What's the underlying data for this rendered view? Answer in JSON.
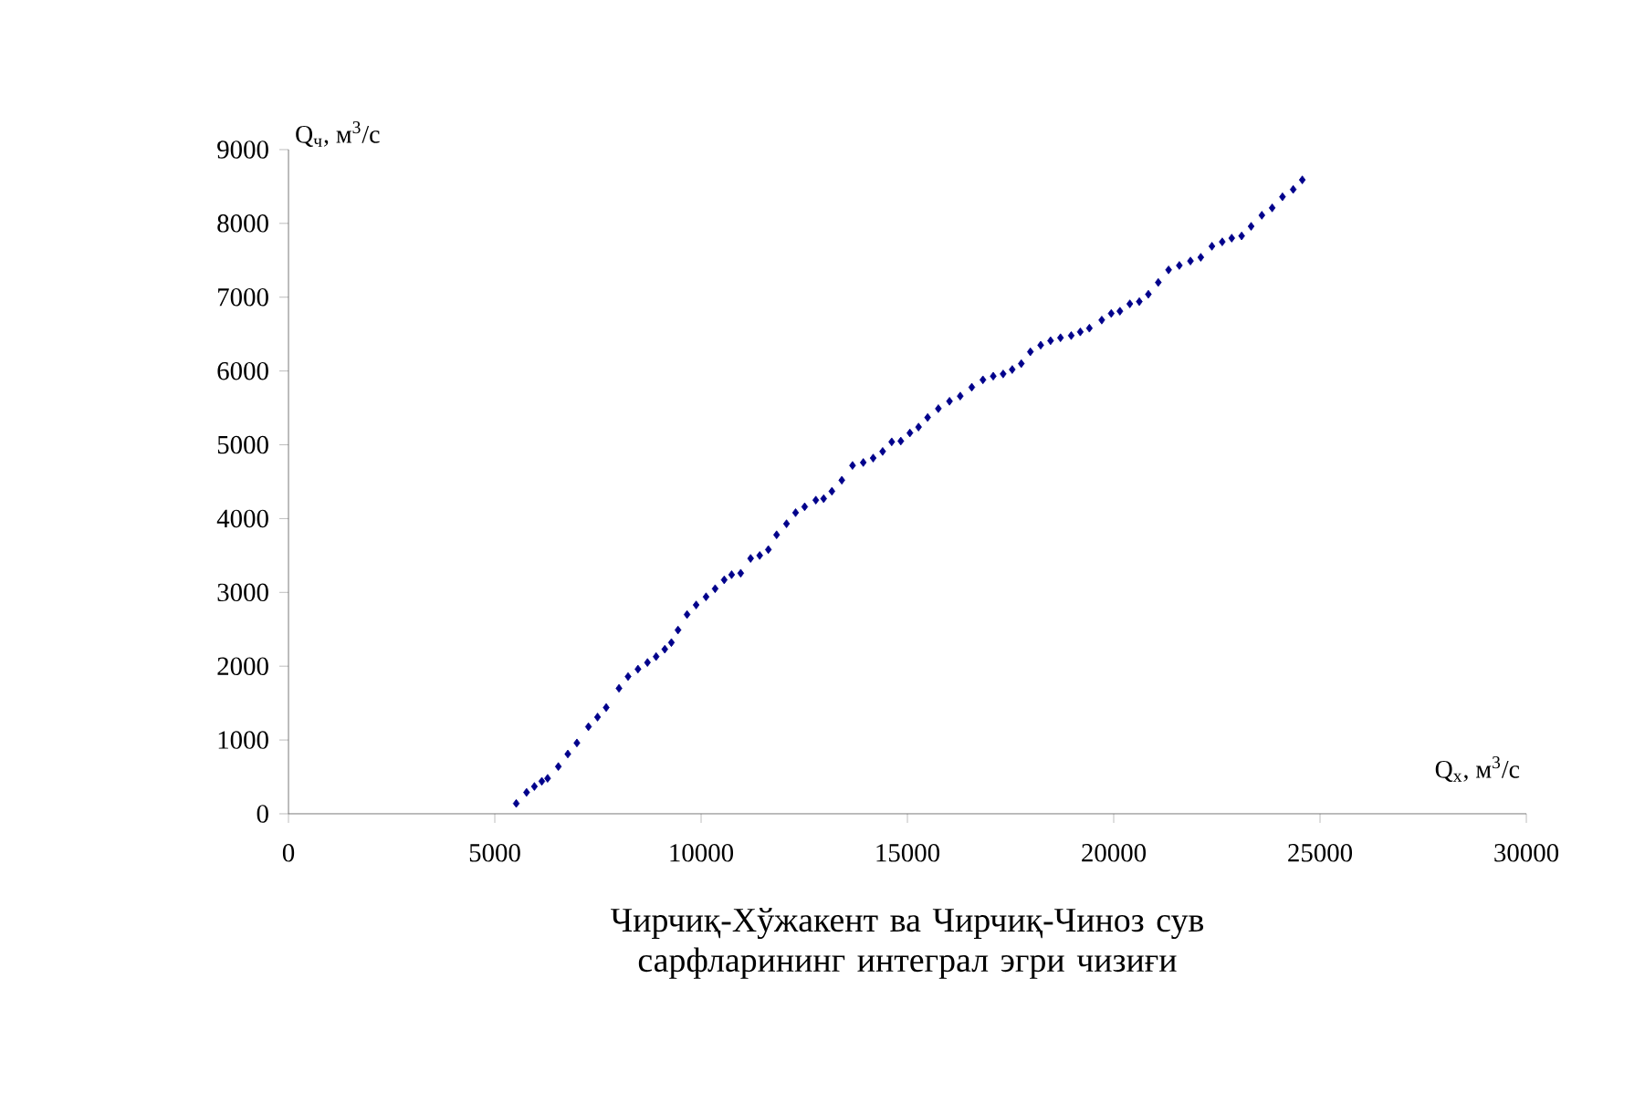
{
  "chart_data": {
    "type": "scatter",
    "title": "Чирчиқ-Хўжакент ва Чирчиқ-Чиноз сув сарфларининг интеграл эгри чизиғи",
    "xlabel": "Q$_{х}$, м$^{3}$/с",
    "ylabel": "Q$_{ч}$, м$^{3}$/с",
    "xlim": [
      0,
      30000
    ],
    "ylim": [
      0,
      9000
    ],
    "xticks": [
      0,
      5000,
      10000,
      15000,
      20000,
      25000,
      30000
    ],
    "yticks": [
      0,
      1000,
      2000,
      3000,
      4000,
      5000,
      6000,
      7000,
      8000,
      9000
    ],
    "marker": "diamond",
    "series": [
      {
        "color": "#00008b",
        "x": [
          5520,
          5770,
          5960,
          6140,
          6280,
          6540,
          6770,
          6990,
          7270,
          7490,
          7700,
          8010,
          8230,
          8470,
          8700,
          8910,
          9120,
          9280,
          9440,
          9660,
          9880,
          10120,
          10340,
          10560,
          10740,
          10960,
          11200,
          11420,
          11630,
          11830,
          12070,
          12290,
          12510,
          12780,
          12970,
          13170,
          13410,
          13670,
          13930,
          14170,
          14400,
          14620,
          14840,
          15060,
          15270,
          15490,
          15750,
          16020,
          16280,
          16560,
          16830,
          17080,
          17320,
          17540,
          17760,
          17980,
          18230,
          18470,
          18710,
          18970,
          19190,
          19410,
          19710,
          19940,
          20150,
          20390,
          20620,
          20840,
          21080,
          21330,
          21590,
          21860,
          22110,
          22380,
          22630,
          22860,
          23100,
          23330,
          23590,
          23840,
          24090,
          24350,
          24570
        ],
        "values": [
          140,
          290,
          370,
          440,
          480,
          640,
          810,
          960,
          1180,
          1310,
          1440,
          1700,
          1860,
          1960,
          2050,
          2130,
          2230,
          2320,
          2490,
          2700,
          2830,
          2940,
          3050,
          3170,
          3240,
          3260,
          3460,
          3500,
          3580,
          3780,
          3930,
          4080,
          4160,
          4250,
          4270,
          4370,
          4520,
          4720,
          4760,
          4820,
          4910,
          5040,
          5050,
          5160,
          5240,
          5370,
          5490,
          5590,
          5660,
          5780,
          5880,
          5930,
          5960,
          6020,
          6100,
          6260,
          6350,
          6410,
          6450,
          6480,
          6530,
          6580,
          6690,
          6780,
          6810,
          6910,
          6940,
          7040,
          7200,
          7370,
          7430,
          7490,
          7540,
          7690,
          7750,
          7800,
          7830,
          7960,
          8110,
          8210,
          8360,
          8460,
          8590
        ]
      }
    ]
  }
}
